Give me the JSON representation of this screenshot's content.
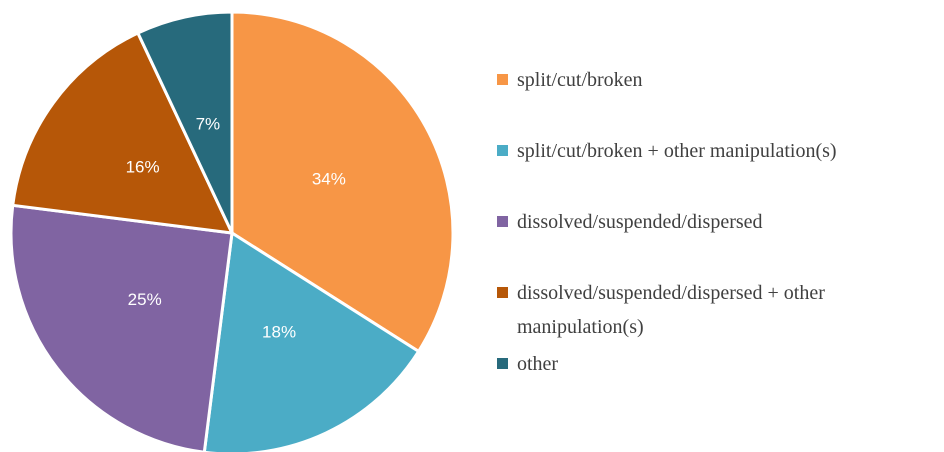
{
  "chart_data": {
    "type": "pie",
    "categories": [
      "split/cut/broken",
      "split/cut/broken + other manipulation(s)",
      "dissolved/suspended/dispersed",
      "dissolved/suspended/dispersed + other manipulation(s)",
      "other"
    ],
    "values": [
      34,
      18,
      25,
      16,
      7
    ],
    "value_labels": [
      "34%",
      "18%",
      "25%",
      "16%",
      "7%"
    ],
    "colors": [
      "#F79646",
      "#4BACC6",
      "#8064A2",
      "#B65708",
      "#276A7C"
    ],
    "legend": "right"
  }
}
